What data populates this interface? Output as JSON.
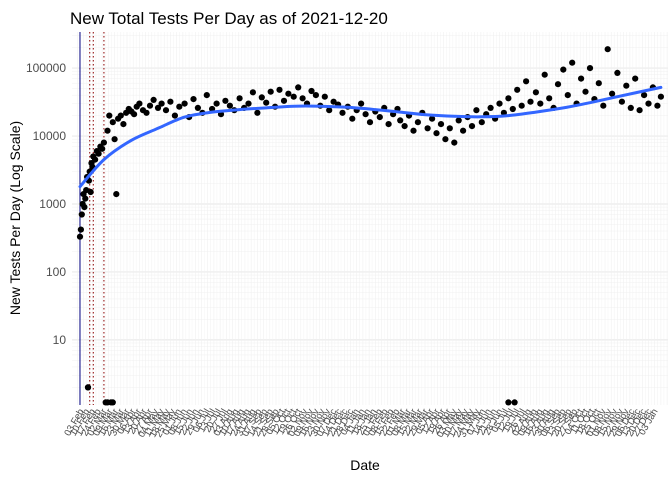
{
  "chart_data": {
    "type": "scatter",
    "title": "New Total Tests Per Day as of 2021-12-20",
    "xlabel": "Date",
    "ylabel": "New Tests Per Day (Log Scale)",
    "y_scale": "log10",
    "ylim": [
      1.1,
      340000
    ],
    "xlim": [
      "2020-02-25",
      "2021-12-28"
    ],
    "grid": true,
    "legend": "none",
    "colors": {
      "points": "#000000",
      "smooth": "#3366ff",
      "vline_solid": "#000080",
      "vline_dotted": "#8b0000",
      "grid_major": "#e5e5e5",
      "grid_minor": "#f0f0f0"
    },
    "y_ticks": [
      {
        "value": 10,
        "label": "10"
      },
      {
        "value": 100,
        "label": "100"
      },
      {
        "value": 1000,
        "label": "1000"
      },
      {
        "value": 10000,
        "label": "10000"
      },
      {
        "value": 100000,
        "label": "100000"
      }
    ],
    "x_tick_labels": [
      "03 Feb",
      "10 Feb",
      "17 Feb",
      "24 Feb",
      "02 Mar",
      "09 Mar",
      "16 Mar",
      "23 Mar",
      "30 Mar",
      "06 Apr",
      "13 Apr",
      "20 Apr",
      "27 Apr",
      "04 May",
      "11 May",
      "18 May",
      "25 May",
      "01 Jun",
      "08 Jun",
      "15 Jun",
      "22 Jun",
      "29 Jun",
      "06 Jul",
      "13 Jul",
      "20 Jul",
      "27 Jul",
      "03 Aug",
      "10 Aug",
      "17 Aug",
      "24 Aug",
      "31 Aug",
      "07 Sep",
      "14 Sep",
      "21 Sep",
      "28 Sep",
      "05 Oct",
      "12 Oct",
      "19 Oct",
      "26 Oct",
      "02 Nov",
      "09 Nov",
      "16 Nov",
      "23 Nov",
      "30 Nov",
      "07 Dec",
      "14 Dec",
      "21 Dec",
      "28 Dec",
      "04 Jan",
      "11 Jan",
      "18 Jan",
      "25 Jan",
      "01 Feb",
      "08 Feb",
      "15 Feb",
      "22 Feb",
      "01 Mar",
      "08 Mar",
      "15 Mar",
      "22 Mar",
      "29 Mar",
      "05 Apr",
      "12 Apr",
      "19 Apr",
      "26 Apr",
      "03 May",
      "10 May",
      "17 May",
      "24 May",
      "31 May",
      "07 Jun",
      "14 Jun",
      "21 Jun",
      "28 Jun",
      "05 Jul",
      "12 Jul",
      "19 Jul",
      "26 Jul",
      "02 Aug",
      "09 Aug",
      "16 Aug",
      "23 Aug",
      "30 Aug",
      "06 Sep",
      "13 Sep",
      "20 Sep",
      "27 Sep",
      "04 Oct",
      "11 Oct",
      "18 Oct",
      "25 Oct",
      "01 Nov",
      "08 Nov",
      "15 Nov",
      "22 Nov",
      "29 Nov",
      "06 Dec",
      "13 Dec",
      "20 Dec",
      "27 Dec",
      "03 Jan"
    ],
    "vertical_lines": [
      {
        "date": "2020-03-05",
        "style": "solid"
      },
      {
        "date": "2020-03-16",
        "style": "dotted"
      },
      {
        "date": "2020-03-20",
        "style": "dotted"
      },
      {
        "date": "2020-04-01",
        "style": "dotted"
      }
    ],
    "smooth_line": {
      "x": [
        "2020-03-05",
        "2020-04-01",
        "2020-05-01",
        "2020-06-01",
        "2020-07-01",
        "2020-08-01",
        "2020-09-01",
        "2020-10-01",
        "2020-11-01",
        "2020-12-01",
        "2021-01-01",
        "2021-02-01",
        "2021-03-01",
        "2021-04-01",
        "2021-05-01",
        "2021-06-01",
        "2021-07-01",
        "2021-08-01",
        "2021-09-01",
        "2021-10-01",
        "2021-11-01",
        "2021-12-20"
      ],
      "y": [
        1800,
        4500,
        8500,
        13000,
        19000,
        22500,
        24500,
        26000,
        27500,
        27500,
        26500,
        24500,
        22500,
        20500,
        19500,
        19200,
        20000,
        22500,
        26000,
        31000,
        38000,
        52000
      ]
    },
    "series": [
      {
        "x": [
          "2020-03-05",
          "2020-03-06",
          "2020-03-07",
          "2020-03-08",
          "2020-03-09",
          "2020-03-10",
          "2020-03-11",
          "2020-03-12",
          "2020-03-13",
          "2020-03-14",
          "2020-03-15",
          "2020-03-16",
          "2020-03-17",
          "2020-03-18",
          "2020-03-19",
          "2020-03-20",
          "2020-03-22",
          "2020-03-24",
          "2020-03-26",
          "2020-03-28",
          "2020-03-30",
          "2020-04-01",
          "2020-04-03",
          "2020-04-05",
          "2020-04-07",
          "2020-04-09",
          "2020-04-11",
          "2020-04-13",
          "2020-04-15",
          "2020-04-17",
          "2020-04-20",
          "2020-04-23",
          "2020-04-26",
          "2020-04-29",
          "2020-05-02",
          "2020-05-05",
          "2020-05-08",
          "2020-05-11",
          "2020-05-15",
          "2020-05-19",
          "2020-05-23",
          "2020-05-27",
          "2020-06-01",
          "2020-06-05",
          "2020-06-10",
          "2020-06-15",
          "2020-06-20",
          "2020-06-25",
          "2020-07-01",
          "2020-07-06",
          "2020-07-11",
          "2020-07-16",
          "2020-07-21",
          "2020-07-26",
          "2020-08-01",
          "2020-08-06",
          "2020-08-11",
          "2020-08-16",
          "2020-08-21",
          "2020-08-26",
          "2020-09-01",
          "2020-09-06",
          "2020-09-11",
          "2020-09-16",
          "2020-09-21",
          "2020-09-26",
          "2020-10-01",
          "2020-10-06",
          "2020-10-11",
          "2020-10-16",
          "2020-10-21",
          "2020-10-26",
          "2020-11-01",
          "2020-11-06",
          "2020-11-11",
          "2020-11-16",
          "2020-11-21",
          "2020-11-26",
          "2020-12-01",
          "2020-12-06",
          "2020-12-11",
          "2020-12-16",
          "2020-12-21",
          "2020-12-26",
          "2021-01-01",
          "2021-01-06",
          "2021-01-11",
          "2021-01-16",
          "2021-01-21",
          "2021-01-26",
          "2021-02-01",
          "2021-02-06",
          "2021-02-11",
          "2021-02-16",
          "2021-02-21",
          "2021-02-26",
          "2021-03-01",
          "2021-03-06",
          "2021-03-11",
          "2021-03-16",
          "2021-03-21",
          "2021-03-26",
          "2021-04-01",
          "2021-04-06",
          "2021-04-11",
          "2021-04-16",
          "2021-04-21",
          "2021-04-26",
          "2021-05-01",
          "2021-05-06",
          "2021-05-11",
          "2021-05-16",
          "2021-05-21",
          "2021-05-26",
          "2021-06-01",
          "2021-06-06",
          "2021-06-11",
          "2021-06-16",
          "2021-06-21",
          "2021-06-26",
          "2021-07-01",
          "2021-07-06",
          "2021-07-11",
          "2021-07-16",
          "2021-07-21",
          "2021-07-26",
          "2021-08-01",
          "2021-08-06",
          "2021-08-11",
          "2021-08-16",
          "2021-08-21",
          "2021-08-26",
          "2021-09-01",
          "2021-09-06",
          "2021-09-11",
          "2021-09-16",
          "2021-09-21",
          "2021-09-26",
          "2021-10-01",
          "2021-10-06",
          "2021-10-11",
          "2021-10-16",
          "2021-10-21",
          "2021-10-26",
          "2021-11-01",
          "2021-11-06",
          "2021-11-11",
          "2021-11-16",
          "2021-11-21",
          "2021-11-26",
          "2021-12-01",
          "2021-12-06",
          "2021-12-11",
          "2021-12-16",
          "2021-12-20",
          "2020-03-14",
          "2020-04-05",
          "2020-04-11",
          "2021-07-01",
          "2021-07-08"
        ],
        "y": [
          330,
          420,
          700,
          1000,
          1400,
          900,
          1200,
          1600,
          2500,
          2,
          2200,
          3000,
          1500,
          4000,
          3500,
          5000,
          4500,
          6000,
          5500,
          7000,
          6500,
          8000,
          1.2,
          12000,
          20000,
          1.2,
          16000,
          9000,
          1400,
          18000,
          20000,
          15000,
          22000,
          25000,
          23000,
          21000,
          27000,
          30000,
          24000,
          22000,
          28000,
          34000,
          26000,
          30000,
          24000,
          32000,
          20000,
          27000,
          30000,
          19000,
          35000,
          26000,
          22000,
          40000,
          25000,
          30000,
          21000,
          33000,
          28000,
          24000,
          36000,
          26000,
          30000,
          44000,
          22000,
          37000,
          31000,
          45000,
          27000,
          48000,
          33000,
          42000,
          38000,
          52000,
          36000,
          30000,
          46000,
          40000,
          28000,
          38000,
          24000,
          32000,
          29000,
          22000,
          27000,
          18000,
          24000,
          30000,
          21000,
          16000,
          23000,
          19000,
          26000,
          15000,
          21000,
          25000,
          17000,
          14000,
          20000,
          12000,
          16000,
          22000,
          13000,
          18000,
          11000,
          15000,
          9000,
          13000,
          8000,
          17000,
          12000,
          19000,
          14000,
          24000,
          16000,
          21000,
          26000,
          18000,
          30000,
          22000,
          36000,
          25000,
          48000,
          28000,
          64000,
          32000,
          44000,
          30000,
          80000,
          36000,
          26000,
          58000,
          95000,
          40000,
          120000,
          30000,
          70000,
          45000,
          100000,
          35000,
          60000,
          28000,
          190000,
          42000,
          85000,
          32000,
          55000,
          26000,
          70000,
          24000,
          40000,
          30000,
          52000,
          28000,
          38000,
          2,
          1.2,
          1.2,
          1.2,
          1.2
        ]
      }
    ]
  }
}
